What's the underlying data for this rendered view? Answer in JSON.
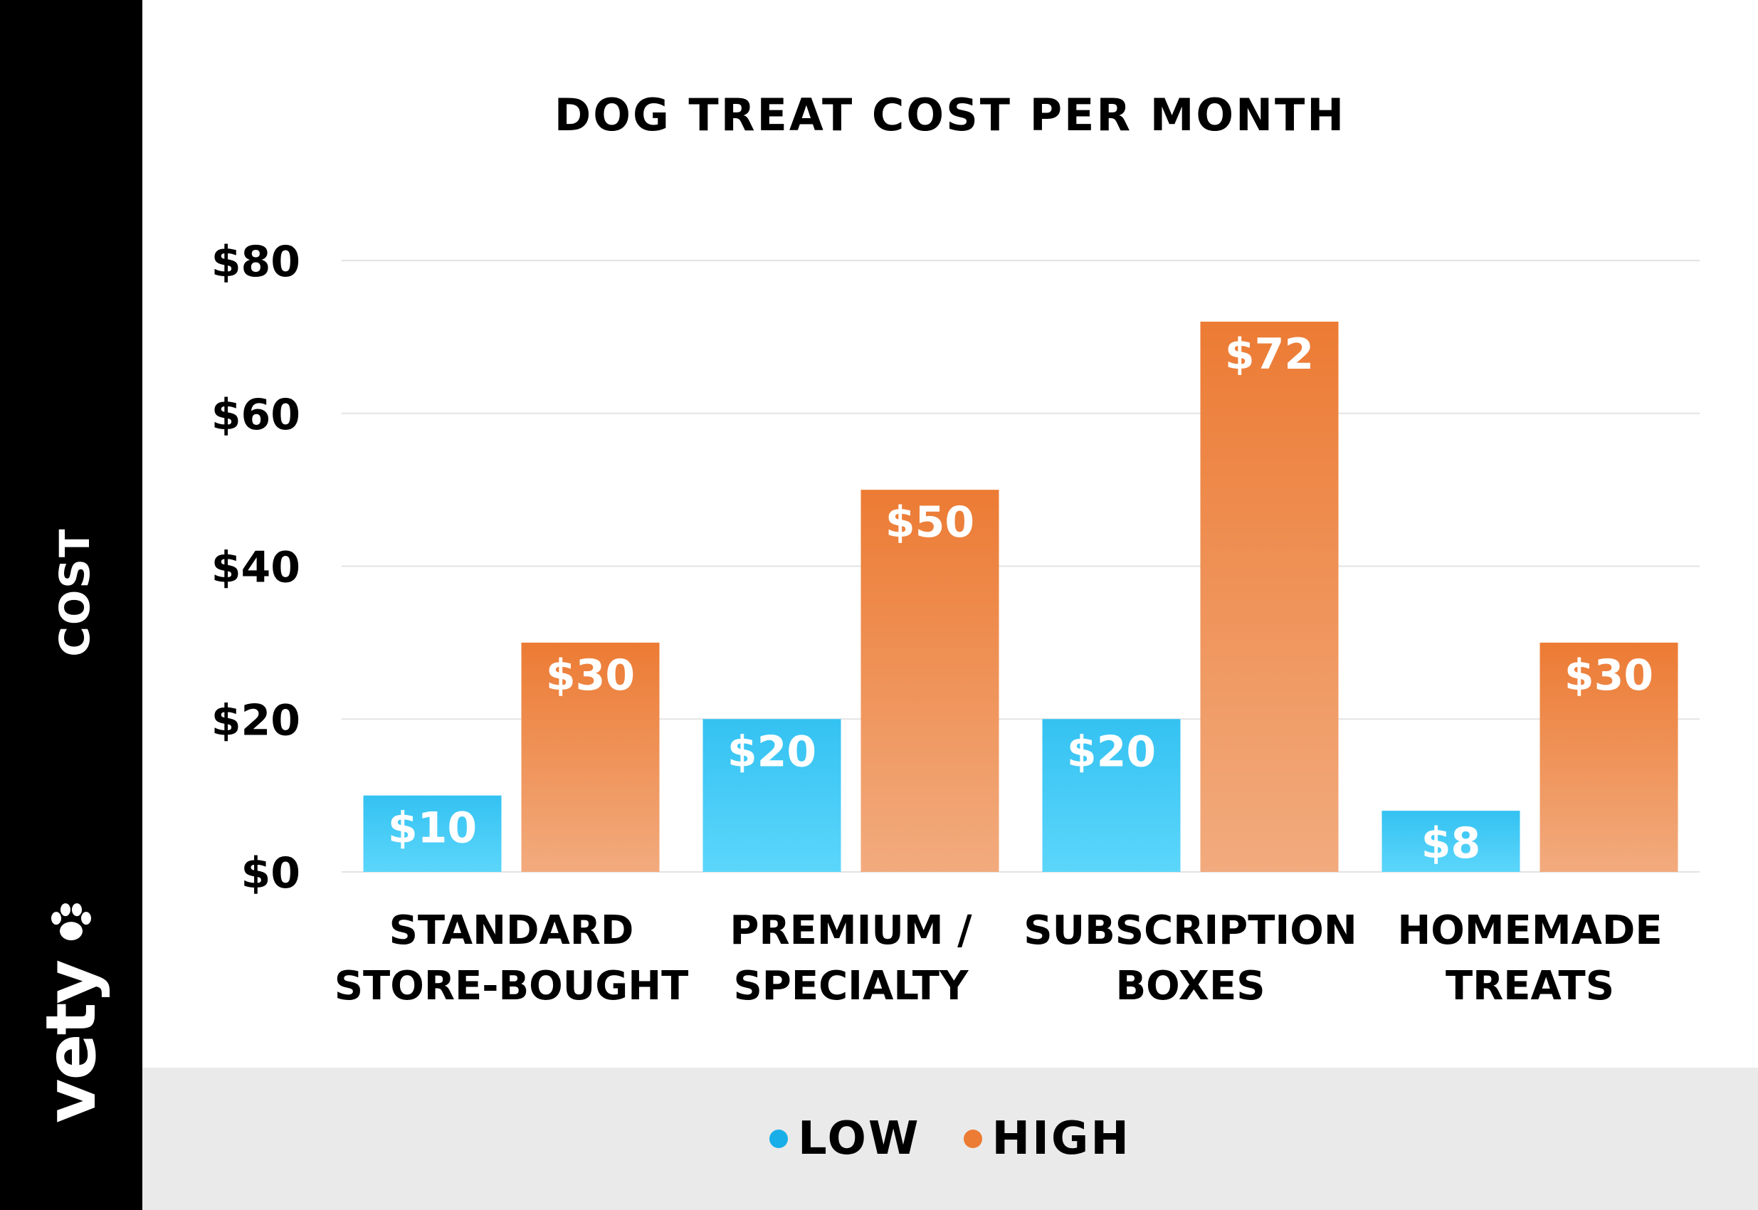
{
  "sidebar": {
    "ylabel": "COST",
    "brand": "vety",
    "brand_icon": "paw-icon"
  },
  "colors": {
    "low": "#34c2f2",
    "low_light": "#5cd6fb",
    "high": "#ec7b34",
    "high_light": "#f2ab7e",
    "grid": "#e3e3e3"
  },
  "legend": {
    "items": [
      {
        "label": "LOW",
        "color": "#19aee8"
      },
      {
        "label": "HIGH",
        "color": "#ec7b34"
      }
    ]
  },
  "chart_data": {
    "type": "bar",
    "title": "DOG TREAT COST PER MONTH",
    "xlabel": "",
    "ylabel": "COST",
    "ylim": [
      0,
      80
    ],
    "yticks": [
      0,
      20,
      40,
      60,
      80
    ],
    "ytick_labels": [
      "$0",
      "$20",
      "$40",
      "$60",
      "$80"
    ],
    "grid": true,
    "legend_position": "bottom",
    "categories": [
      [
        "STANDARD",
        "STORE-BOUGHT"
      ],
      [
        "PREMIUM /",
        "SPECIALTY"
      ],
      [
        "SUBSCRIPTION",
        "BOXES"
      ],
      [
        "HOMEMADE",
        "TREATS"
      ]
    ],
    "series": [
      {
        "name": "LOW",
        "values": [
          10,
          20,
          20,
          8
        ],
        "labels": [
          "$10",
          "$20",
          "$20",
          "$8"
        ]
      },
      {
        "name": "HIGH",
        "values": [
          30,
          50,
          72,
          30
        ],
        "labels": [
          "$30",
          "$50",
          "$72",
          "$30"
        ]
      }
    ]
  }
}
